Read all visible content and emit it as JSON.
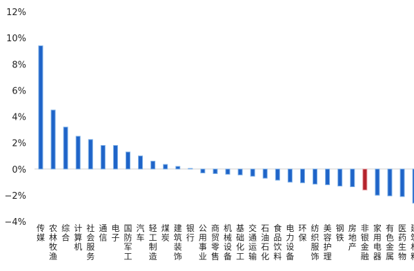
{
  "chart_data": {
    "type": "bar",
    "title": "",
    "xlabel": "",
    "ylabel": "",
    "ylim": [
      -4,
      12
    ],
    "yticks": [
      -4,
      -2,
      0,
      2,
      4,
      6,
      8,
      10,
      12
    ],
    "ytick_labels": [
      "−4%",
      "−2%",
      "0%",
      "2%",
      "4%",
      "6%",
      "8%",
      "10%",
      "12%"
    ],
    "grid": false,
    "legend": "none",
    "bar_color": "#1f64c8",
    "bar_edge_color": "#7fb1e8",
    "highlight_color": "#b5232c",
    "highlight_index": 26,
    "categories": [
      "传媒",
      "农林牧渔",
      "综合",
      "计算机",
      "社会服务",
      "通信",
      "电子",
      "国防军工",
      "汽车",
      "轻工制造",
      "煤炭",
      "建筑装饰",
      "银行",
      "公用事业",
      "商贸零售",
      "机械设备",
      "基础化工",
      "交通运输",
      "石油石化",
      "食品饮料",
      "电力设备",
      "环保",
      "纺织服饰",
      "美容护理",
      "钢铁",
      "房地产",
      "非银金融",
      "家用电器",
      "有色金属",
      "医药生物",
      "建筑材料"
    ],
    "values": [
      9.4,
      4.5,
      3.2,
      2.5,
      2.25,
      1.8,
      1.8,
      1.3,
      1.0,
      0.6,
      0.35,
      0.2,
      0.05,
      -0.3,
      -0.35,
      -0.4,
      -0.45,
      -0.55,
      -0.7,
      -0.85,
      -1.0,
      -1.05,
      -1.15,
      -1.2,
      -1.3,
      -1.35,
      -1.6,
      -2.0,
      -2.05,
      -2.1,
      -2.6
    ]
  }
}
